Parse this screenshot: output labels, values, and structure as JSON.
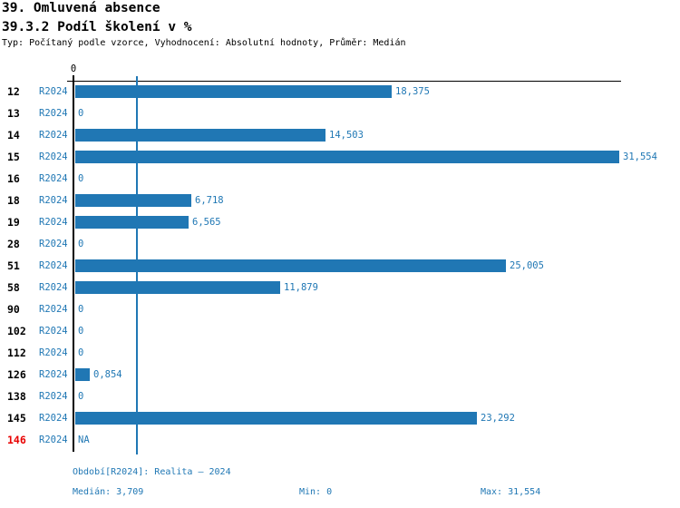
{
  "header": {
    "title": "39. Omluvená absence",
    "subtitle": "39.3.2 Podíl školení v %",
    "meta": "Typ: Počítaný podle vzorce, Vyhodnocení: Absolutní hodnoty, Průměr: Medián"
  },
  "axis": {
    "zero_tick_label": "0"
  },
  "colors": {
    "bar": "#2077b4",
    "blue_text": "#1f77b4",
    "median_line": "#1f77b4",
    "row_number": "#000000",
    "row_number_alert": "#e80000",
    "axis_line": "#000000",
    "background": "#ffffff"
  },
  "chart_data": {
    "type": "bar",
    "orientation": "horizontal",
    "title": "39.3.2 Podíl školení v %",
    "categories": [
      "12",
      "13",
      "14",
      "15",
      "16",
      "18",
      "19",
      "28",
      "51",
      "58",
      "90",
      "102",
      "112",
      "126",
      "138",
      "145",
      "146"
    ],
    "series": [
      {
        "name": "R2024",
        "values": [
          18.375,
          0,
          14.503,
          31.554,
          0,
          6.718,
          6.565,
          0,
          25.005,
          11.879,
          0,
          0,
          0,
          0.854,
          0,
          23.292,
          null
        ]
      }
    ],
    "value_labels": [
      "18,375",
      "0",
      "14,503",
      "31,554",
      "0",
      "6,718",
      "6,565",
      "0",
      "25,005",
      "11,879",
      "0",
      "0",
      "0",
      "0,854",
      "0",
      "23,292",
      "NA"
    ],
    "xlim": [
      0,
      31.554
    ],
    "median_value": 3.709,
    "min_value": 0,
    "max_value": 31.554,
    "alert_categories": [
      "146"
    ],
    "grid": false,
    "legend_position": "none"
  },
  "footer": {
    "period_info": "Období[R2024]: Realita – 2024",
    "median_label": "Medián: 3,709",
    "min_label": "Min: 0",
    "max_label": "Max: 31,554"
  }
}
